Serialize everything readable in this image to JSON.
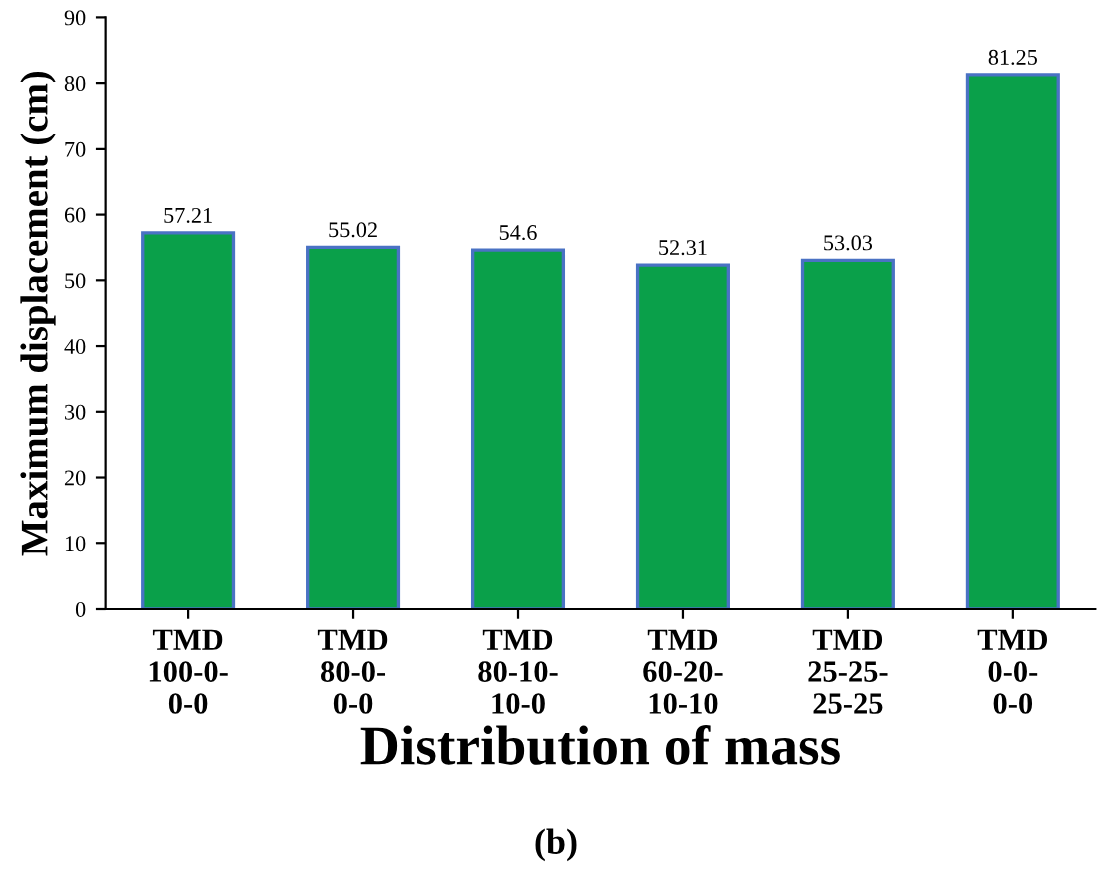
{
  "chart_data": {
    "type": "bar",
    "xlabel": "Distribution of mass",
    "ylabel": "Maximum displacement (cm)",
    "categories": [
      "TMD\n100-0-\n0-0",
      "TMD\n80-0-\n0-0",
      "TMD\n80-10-\n10-0",
      "TMD\n60-20-\n10-10",
      "TMD\n25-25-\n25-25",
      "TMD\n0-0-\n0-0"
    ],
    "values": [
      57.21,
      55.02,
      54.6,
      52.31,
      53.03,
      81.25
    ],
    "color": "#0aa04a",
    "ylim": [
      0,
      90
    ],
    "yticks": [
      0,
      10,
      20,
      30,
      40,
      50,
      60,
      70,
      80,
      90
    ],
    "grid": false,
    "data_labels": true,
    "annotations": [
      "(b)"
    ]
  }
}
